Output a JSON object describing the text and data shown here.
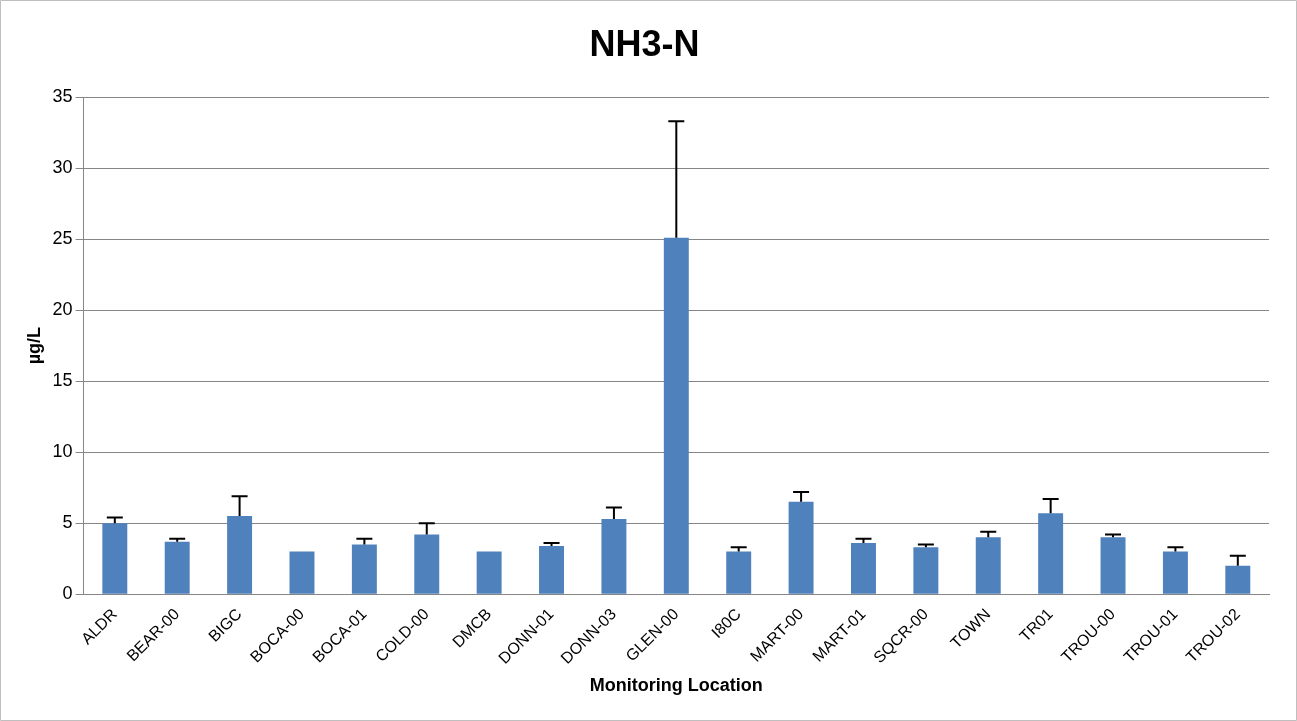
{
  "chart_data": {
    "type": "bar",
    "title": "NH3-N",
    "xlabel": "Monitoring Location",
    "ylabel": "µg/L",
    "categories": [
      "ALDR",
      "BEAR-00",
      "BIGC",
      "BOCA-00",
      "BOCA-01",
      "COLD-00",
      "DMCB",
      "DONN-01",
      "DONN-03",
      "GLEN-00",
      "I80C",
      "MART-00",
      "MART-01",
      "SQCR-00",
      "TOWN",
      "TR01",
      "TROU-00",
      "TROU-01",
      "TROU-02"
    ],
    "values": [
      5.0,
      3.7,
      5.5,
      3.0,
      3.5,
      4.2,
      3.0,
      3.4,
      5.3,
      25.1,
      3.0,
      6.5,
      3.6,
      3.3,
      4.0,
      5.7,
      4.0,
      3.0,
      2.0
    ],
    "errors": [
      [
        5.0,
        5.4
      ],
      [
        3.7,
        3.9
      ],
      [
        5.5,
        6.9
      ],
      null,
      [
        3.5,
        3.9
      ],
      [
        4.2,
        5.0
      ],
      null,
      [
        3.4,
        3.6
      ],
      [
        5.3,
        6.1
      ],
      [
        25.1,
        33.3
      ],
      [
        3.0,
        3.3
      ],
      [
        6.5,
        7.2
      ],
      [
        3.6,
        3.9
      ],
      [
        3.3,
        3.5
      ],
      [
        4.0,
        4.4
      ],
      [
        5.7,
        6.7
      ],
      [
        4.0,
        4.2
      ],
      [
        3.0,
        3.3
      ],
      [
        2.0,
        2.7
      ]
    ],
    "color": "#4f81bd",
    "ylim": [
      0,
      35
    ],
    "yticks": [
      0,
      5,
      10,
      15,
      20,
      25,
      30,
      35
    ],
    "grid": "y",
    "legend": false
  }
}
